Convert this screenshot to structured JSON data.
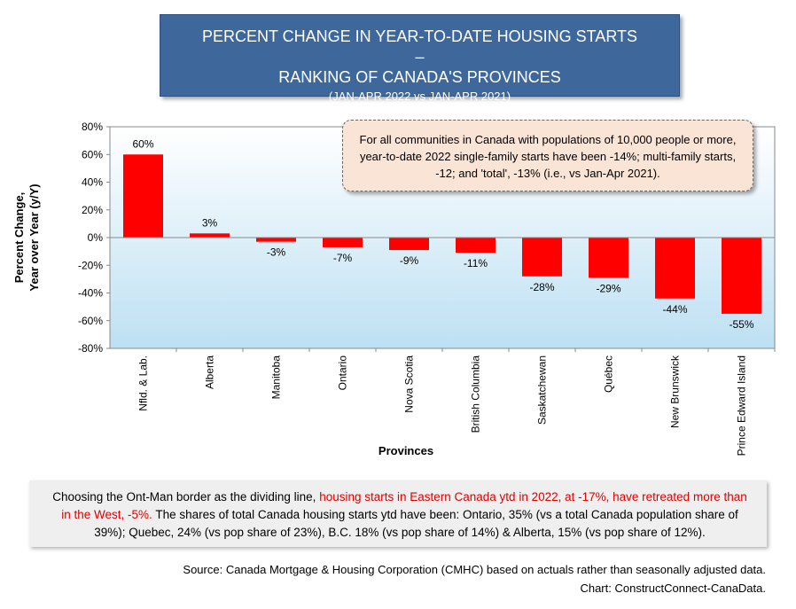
{
  "title": {
    "line1": "PERCENT CHANGE IN YEAR-TO-DATE HOUSING STARTS –",
    "line2": "RANKING OF CANADA'S PROVINCES",
    "sub": "(JAN-APR 2022 vs JAN-APR 2021)"
  },
  "callout": "For all communities in Canada with populations of 10,000 people or more, year-to-date 2022 single-family starts have been -14%; multi-family starts, -12; and 'total', -13% (i.e., vs Jan-Apr 2021).",
  "notes": {
    "part1": "Choosing the Ont-Man border as the dividing line, ",
    "highlight": "housing starts in Eastern Canada ytd in 2022, at -17%, have retreated more than in the West, -5%.",
    "part2": " The shares of total Canada housing starts ytd have been: Ontario, 35% (vs a total Canada population share of 39%); Quebec, 24% (vs pop share of 23%), B.C. 18% (vs pop share of 14%) & Alberta, 15% (vs pop share of 12%)."
  },
  "source": {
    "line1": "Source: Canada Mortgage & Housing Corporation (CMHC) based on actuals rather than seasonally adjusted data.",
    "line2": "Chart: ConstructConnect-CanaData."
  },
  "chart_data": {
    "type": "bar",
    "xlabel": "Provinces",
    "ylabel_line1": "Percent Change,",
    "ylabel_line2": "Year over Year (y/Y)",
    "ylim": [
      -80,
      80
    ],
    "yticks": [
      80,
      60,
      40,
      20,
      0,
      -20,
      -40,
      -60,
      -80
    ],
    "ytick_labels": [
      "80%",
      "60%",
      "40%",
      "20%",
      "0%",
      "-20%",
      "-40%",
      "-60%",
      "-80%"
    ],
    "categories": [
      "Nfld. & Lab.",
      "Alberta",
      "Manitoba",
      "Ontario",
      "Nova Scotia",
      "British Columbia",
      "Saskatchewan",
      "Québec",
      "New Brunswick",
      "Prince Edward Island"
    ],
    "values": [
      60,
      3,
      -3,
      -7,
      -9,
      -11,
      -28,
      -29,
      -44,
      -55
    ],
    "data_labels": [
      "60%",
      "3%",
      "-3%",
      "-7%",
      "-9%",
      "-11%",
      "-28%",
      "-29%",
      "-44%",
      "-55%"
    ],
    "bar_color": "#ff0000",
    "plot_bg_top": "#ffffff",
    "plot_bg_bottom": "#bde0f3",
    "grid": false
  }
}
